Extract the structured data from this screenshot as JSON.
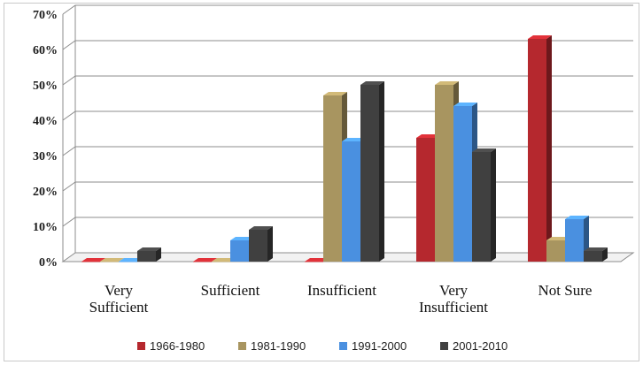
{
  "chart_data": {
    "type": "bar",
    "categories": [
      "Very Sufficient",
      "Sufficient",
      "Insufficient",
      "Very Insufficient",
      "Not Sure"
    ],
    "category_lines": [
      [
        "Very",
        "Sufficient"
      ],
      [
        "Sufficient"
      ],
      [
        "Insufficient"
      ],
      [
        "Very",
        "Insufficient"
      ],
      [
        "Not Sure"
      ]
    ],
    "series": [
      {
        "name": "1966-1980",
        "color": "#b5282e",
        "values": [
          0,
          0,
          0,
          35,
          63
        ]
      },
      {
        "name": "1981-1990",
        "color": "#a89560",
        "values": [
          0,
          0,
          47,
          50,
          6
        ]
      },
      {
        "name": "1991-2000",
        "color": "#4a90e0",
        "values": [
          0,
          6,
          34,
          44,
          12
        ]
      },
      {
        "name": "2001-2010",
        "color": "#404040",
        "values": [
          3,
          9,
          50,
          31,
          3
        ]
      }
    ],
    "y_ticks": [
      "0%",
      "10%",
      "20%",
      "30%",
      "40%",
      "50%",
      "60%",
      "70%"
    ],
    "ylim": [
      0,
      70
    ],
    "grid": true,
    "legend_position": "bottom",
    "title": "",
    "xlabel": "",
    "ylabel": ""
  }
}
